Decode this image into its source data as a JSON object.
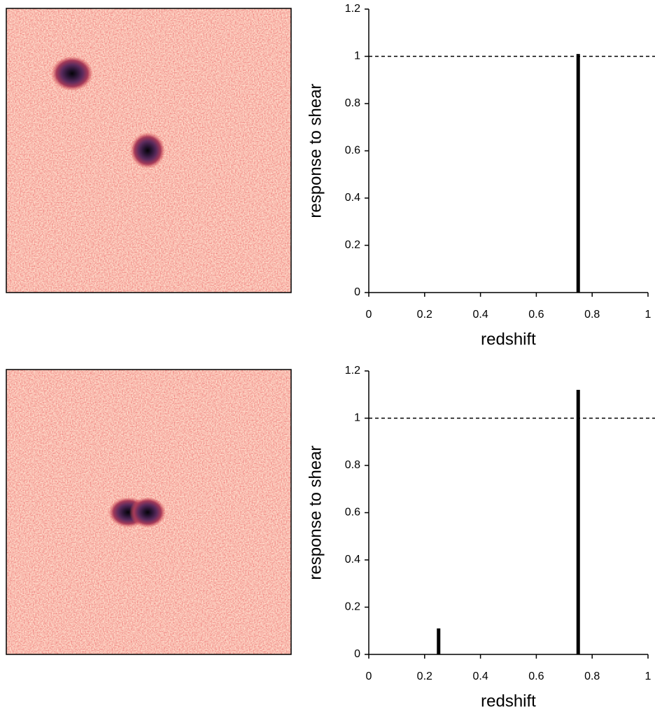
{
  "chart_data": [
    {
      "type": "bar",
      "x": [
        0.75
      ],
      "values": [
        1.01
      ],
      "color": "#000000",
      "xlabel": "redshift",
      "ylabel": "response to shear",
      "xlim": [
        0,
        1
      ],
      "xticks": [
        0,
        0.2,
        0.4,
        0.6,
        0.8,
        1
      ],
      "ylim": [
        0,
        1.2
      ],
      "yticks": [
        0,
        0.2,
        0.4,
        0.6,
        0.8,
        1,
        1.2
      ],
      "hline": 1
    },
    {
      "type": "bar",
      "x": [
        0.25,
        0.75
      ],
      "values": [
        0.11,
        1.12
      ],
      "color": "#000000",
      "xlabel": "redshift",
      "ylabel": "response to shear",
      "xlim": [
        0,
        1
      ],
      "xticks": [
        0,
        0.2,
        0.4,
        0.6,
        0.8,
        1
      ],
      "ylim": [
        0,
        1.2
      ],
      "yticks": [
        0,
        0.2,
        0.4,
        0.6,
        0.8,
        1,
        1.2
      ],
      "hline": 1
    }
  ]
}
